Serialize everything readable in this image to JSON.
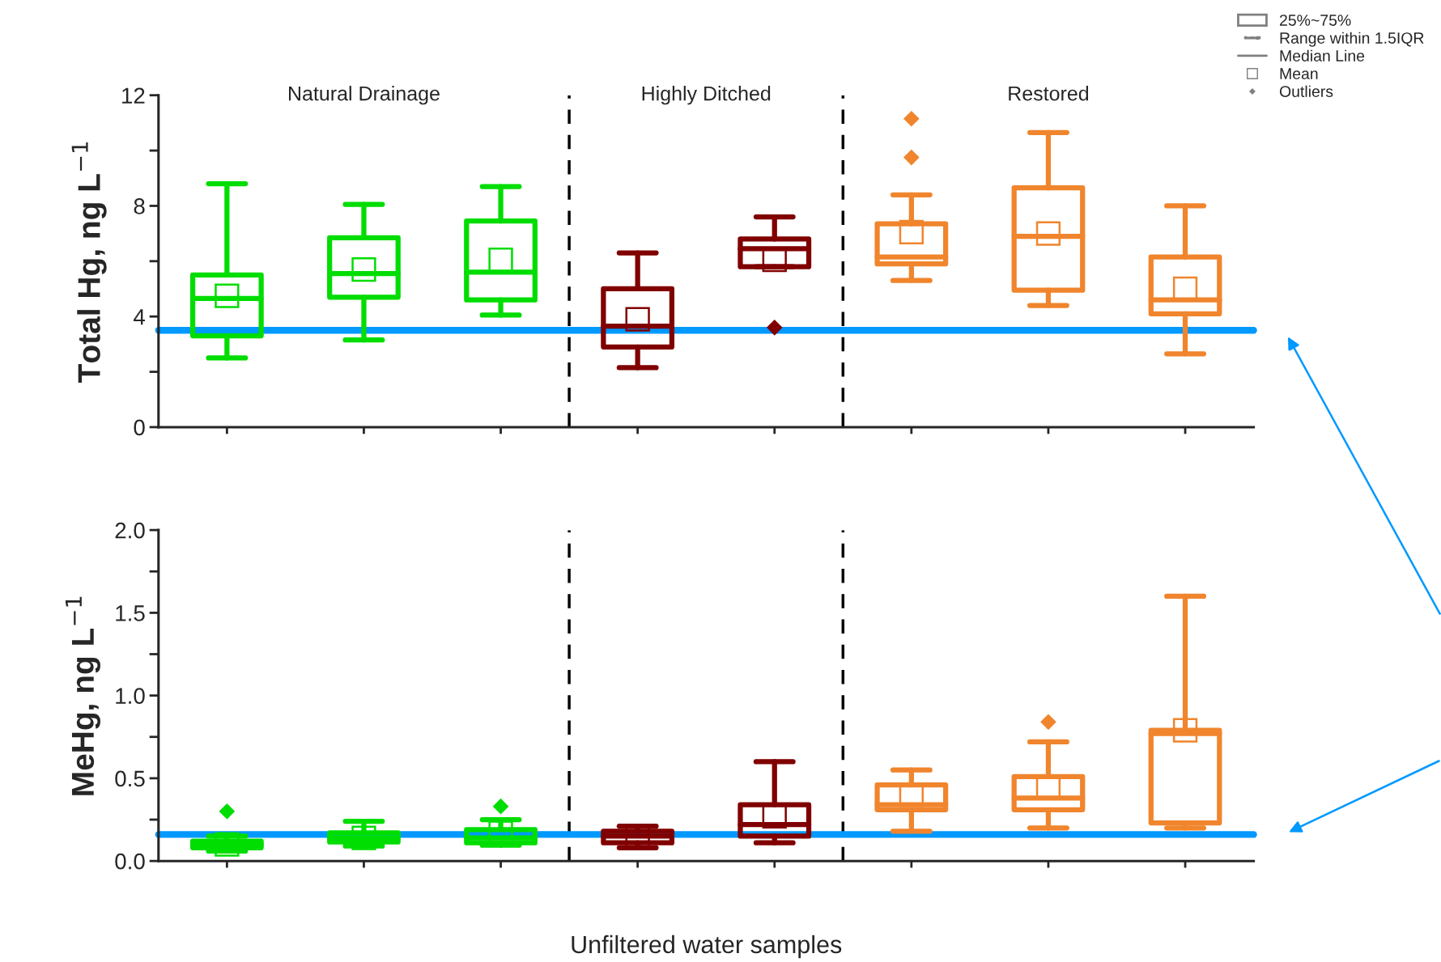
{
  "chart_data": [
    {
      "type": "box",
      "ylabel": "Total Hg, ng L$^{−1}$",
      "categories": [
        null,
        null,
        null,
        null,
        null,
        null,
        null,
        null
      ],
      "ylim": [
        0,
        12
      ],
      "yticks": [
        0,
        {
          "value": 2,
          "label": null
        },
        4,
        {
          "value": 6,
          "label": null
        },
        8,
        {
          "value": 10,
          "label": null
        },
        12
      ],
      "tick_labels": "y",
      "annotations": [
        "Natural Drainage",
        "Highly Ditched",
        "Restored",
        "25%~75%",
        "Range within 1.5IQR",
        "Median Line",
        "Mean",
        "Outliers"
      ],
      "ref_lines": [
        {
          "axis": "y",
          "value": 3.5,
          "color": "#0099ff",
          "line_style": "solid"
        }
      ],
      "series": [
        {
          "color": "#00dd00",
          "boxes": [
            {
              "low": 2.5,
              "q1": 3.3,
              "median": 4.65,
              "q3": 5.5,
              "high": 8.8,
              "mean": 4.75
            },
            {
              "low": 3.15,
              "q1": 4.7,
              "median": 5.55,
              "q3": 6.85,
              "high": 8.05,
              "mean": 5.7
            },
            {
              "low": 4.05,
              "q1": 4.6,
              "median": 5.6,
              "q3": 7.45,
              "high": 8.7,
              "mean": 6.05
            },
            null,
            null,
            null,
            null,
            null
          ]
        },
        {
          "color": "#800000",
          "boxes": [
            null,
            null,
            null,
            {
              "low": 2.15,
              "q1": 2.9,
              "median": 3.65,
              "q3": 5.0,
              "high": 6.3,
              "mean": 3.9
            },
            {
              "low": 5.8,
              "q1": 5.8,
              "median": 6.45,
              "q3": 6.8,
              "high": 7.6,
              "mean": 6.05,
              "outliers": [
                3.6
              ]
            },
            null,
            null,
            null
          ]
        },
        {
          "color": "#f0852d",
          "boxes": [
            null,
            null,
            null,
            null,
            null,
            {
              "low": 5.3,
              "q1": 5.9,
              "median": 6.15,
              "q3": 7.35,
              "high": 8.4,
              "mean": 7.05,
              "outliers": [
                9.75,
                11.15
              ]
            },
            {
              "low": 4.4,
              "q1": 4.95,
              "median": 6.9,
              "q3": 8.65,
              "high": 10.65,
              "mean": 7.0
            },
            {
              "low": 2.65,
              "q1": 4.1,
              "median": 4.6,
              "q3": 6.15,
              "high": 8.0,
              "mean": 5.0
            }
          ]
        }
      ]
    },
    {
      "type": "box",
      "ylabel": "MeHg, ng L$^{−1}$",
      "xlabel": "Unfiltered water samples",
      "categories": [
        null,
        null,
        null,
        null,
        null,
        null,
        null,
        null
      ],
      "ylim": [
        0,
        2
      ],
      "yticks": [
        {
          "value": 0,
          "label": "0.0"
        },
        {
          "value": 0.25,
          "label": null
        },
        {
          "value": 0.5,
          "label": "0.5"
        },
        {
          "value": 0.75,
          "label": null
        },
        {
          "value": 1,
          "label": "1.0"
        },
        {
          "value": 1.25,
          "label": null
        },
        {
          "value": 1.5,
          "label": "1.5"
        },
        {
          "value": 1.75,
          "label": null
        },
        {
          "value": 2,
          "label": "2.0"
        }
      ],
      "tick_labels": "y",
      "ref_lines": [
        {
          "axis": "y",
          "value": 0.16,
          "color": "#0099ff",
          "line_style": "solid"
        }
      ],
      "series": [
        {
          "color": "#00dd00",
          "boxes": [
            {
              "low": 0.06,
              "q1": 0.08,
              "median": 0.1,
              "q3": 0.12,
              "high": 0.15,
              "mean": 0.1,
              "outliers": [
                0.3
              ]
            },
            {
              "low": 0.09,
              "q1": 0.115,
              "median": 0.14,
              "q3": 0.17,
              "high": 0.24,
              "mean": 0.14
            },
            {
              "low": 0.095,
              "q1": 0.11,
              "median": 0.14,
              "q3": 0.19,
              "high": 0.25,
              "mean": 0.17,
              "outliers": [
                0.33
              ]
            },
            null,
            null,
            null,
            null,
            null
          ]
        },
        {
          "color": "#800000",
          "boxes": [
            null,
            null,
            null,
            {
              "low": 0.08,
              "q1": 0.11,
              "median": 0.15,
              "q3": 0.18,
              "high": 0.21,
              "mean": 0.15
            },
            {
              "low": 0.11,
              "q1": 0.15,
              "median": 0.22,
              "q3": 0.34,
              "high": 0.6,
              "mean": 0.27
            },
            null,
            null,
            null
          ]
        },
        {
          "color": "#f0852d",
          "boxes": [
            null,
            null,
            null,
            null,
            null,
            {
              "low": 0.18,
              "q1": 0.31,
              "median": 0.34,
              "q3": 0.46,
              "high": 0.55,
              "mean": 0.4
            },
            {
              "low": 0.2,
              "q1": 0.31,
              "median": 0.38,
              "q3": 0.51,
              "high": 0.72,
              "mean": 0.45,
              "outliers": [
                0.84
              ]
            },
            {
              "low": 0.2,
              "q1": 0.23,
              "median": 0.77,
              "q3": 0.79,
              "high": 1.6,
              "mean": 0.79
            }
          ]
        }
      ]
    }
  ]
}
